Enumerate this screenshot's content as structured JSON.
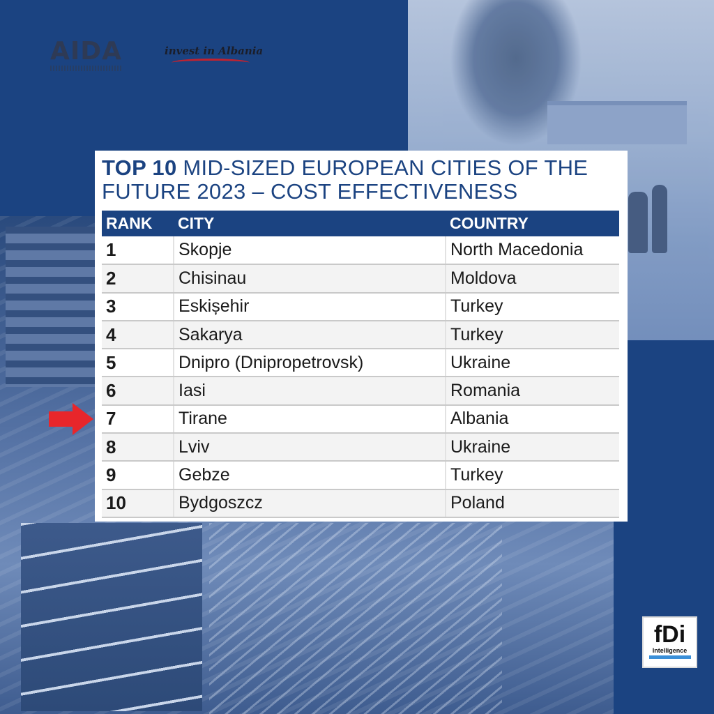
{
  "logos": {
    "aida": "AIDA",
    "invest": "invest in Albania",
    "fdi_mark": "fDi",
    "fdi_sub": "Intelligence"
  },
  "title": {
    "bold": "TOP 10",
    "rest": " MID-SIZED EUROPEAN CITIES OF THE FUTURE 2023 – COST EFFECTIVENESS"
  },
  "table": {
    "headers": [
      "RANK",
      "CITY",
      "COUNTRY"
    ],
    "rows": [
      {
        "rank": "1",
        "city": "Skopje",
        "country": "North Macedonia"
      },
      {
        "rank": "2",
        "city": "Chisinau",
        "country": "Moldova"
      },
      {
        "rank": "3",
        "city": "Eskișehir",
        "country": "Turkey"
      },
      {
        "rank": "4",
        "city": "Sakarya",
        "country": "Turkey"
      },
      {
        "rank": "5",
        "city": "Dnipro (Dnipropetrovsk)",
        "country": "Ukraine"
      },
      {
        "rank": "6",
        "city": "Iasi",
        "country": "Romania"
      },
      {
        "rank": "7",
        "city": "Tirane",
        "country": "Albania"
      },
      {
        "rank": "8",
        "city": "Lviv",
        "country": "Ukraine"
      },
      {
        "rank": "9",
        "city": "Gebze",
        "country": "Turkey"
      },
      {
        "rank": "10",
        "city": "Bydgoszcz",
        "country": "Poland"
      }
    ]
  },
  "highlight": {
    "icon": "arrow-right-icon",
    "color": "#e8262b"
  },
  "colors": {
    "brand": "#1b4381",
    "accent": "#e8262b"
  }
}
